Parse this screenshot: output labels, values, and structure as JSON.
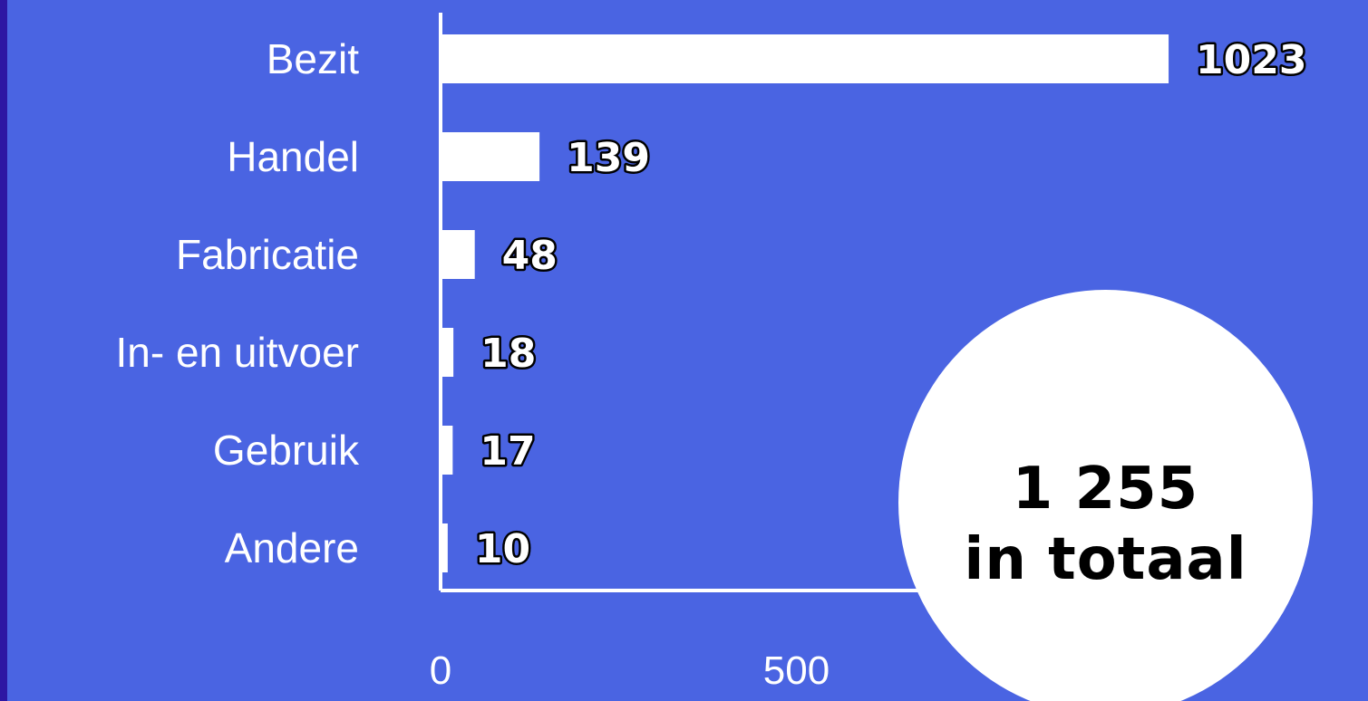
{
  "chart_data": {
    "type": "bar",
    "orientation": "horizontal",
    "categories": [
      "Bezit",
      "Handel",
      "Fabricatie",
      "In- en uitvoer",
      "Gebruik",
      "Andere"
    ],
    "values": [
      1023,
      139,
      48,
      18,
      17,
      10
    ],
    "data_labels": [
      "1023",
      "139",
      "48",
      "18",
      "17",
      "10"
    ],
    "xticks": [
      0,
      500
    ],
    "xtick_labels": [
      "0",
      "500"
    ],
    "xlim": [
      0,
      1023
    ],
    "grid": false,
    "legend": "none",
    "colors": {
      "bar": "#ffffff",
      "background": "#4a64e2",
      "border": "#2d16a3",
      "axis": "#ffffff"
    }
  },
  "total": {
    "number": "1 255",
    "text": "in totaal"
  }
}
